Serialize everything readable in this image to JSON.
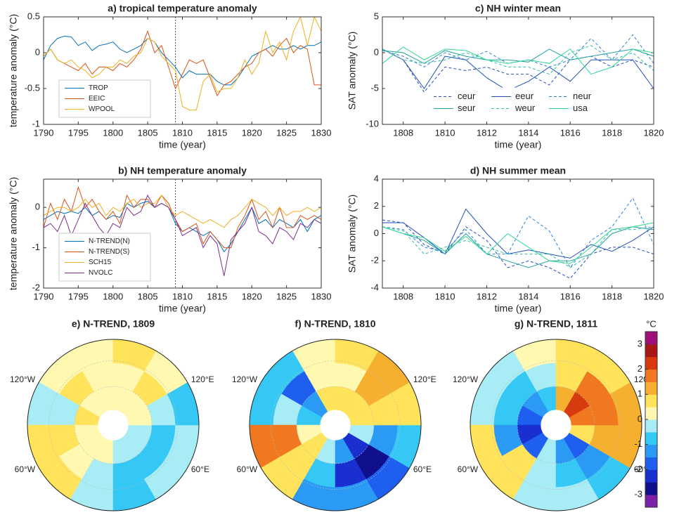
{
  "chart_data": [
    {
      "type": "line",
      "title": "a) tropical temperature anomaly",
      "xlabel": "time (year)",
      "ylabel": "temperature anomaly (°C)",
      "x": [
        1790,
        1791,
        1792,
        1793,
        1794,
        1795,
        1796,
        1797,
        1798,
        1799,
        1800,
        1801,
        1802,
        1803,
        1804,
        1805,
        1806,
        1807,
        1808,
        1809,
        1810,
        1811,
        1812,
        1813,
        1814,
        1815,
        1816,
        1817,
        1818,
        1819,
        1820,
        1821,
        1822,
        1823,
        1824,
        1825,
        1826,
        1827,
        1828,
        1829,
        1830
      ],
      "xlim": [
        1790,
        1830
      ],
      "xticks": [
        1790,
        1795,
        1800,
        1805,
        1810,
        1815,
        1820,
        1825,
        1830
      ],
      "ylim": [
        -1,
        0.5
      ],
      "yticks": [
        -1,
        -0.5,
        0,
        0.5
      ],
      "vline": 1809,
      "legend": "lower left",
      "series": [
        {
          "name": "TROP",
          "color": "#0072bd",
          "values": [
            -0.1,
            0.1,
            0.2,
            0.23,
            0.22,
            0.1,
            0.15,
            0.03,
            0.1,
            0.12,
            0.15,
            0.05,
            0,
            0.05,
            0.1,
            0.2,
            0.15,
            0,
            -0.1,
            -0.2,
            -0.35,
            -0.25,
            -0.3,
            -0.3,
            -0.3,
            -0.4,
            -0.45,
            -0.45,
            -0.35,
            -0.2,
            -0.05,
            0,
            0.05,
            0.1,
            0.05,
            0.05,
            0.1,
            0.05,
            0.1,
            0.1,
            0.15
          ]
        },
        {
          "name": "EEIC",
          "color": "#d95319",
          "values": [
            -0.05,
            0.05,
            -0.1,
            -0.15,
            -0.2,
            -0.25,
            -0.15,
            -0.3,
            -0.2,
            -0.2,
            -0.25,
            -0.15,
            -0.2,
            -0.1,
            0.05,
            0.3,
            0,
            0.1,
            -0.2,
            -0.5,
            -0.3,
            -0.1,
            -0.15,
            -0.1,
            -0.35,
            -0.6,
            -0.45,
            -0.4,
            -0.3,
            -0.2,
            -0.15,
            0,
            0.05,
            -0.05,
            0.1,
            0.2,
            0,
            0.1,
            0.05,
            -0.45,
            -0.45
          ]
        },
        {
          "name": "WPOOL",
          "color": "#edb120",
          "values": [
            -0.05,
            0.05,
            -0.1,
            -0.15,
            -0.1,
            -0.2,
            -0.25,
            -0.35,
            -0.3,
            -0.2,
            -0.2,
            -0.1,
            -0.15,
            -0.05,
            0,
            0.2,
            0.15,
            -0.05,
            -0.15,
            -0.25,
            -0.75,
            -0.8,
            -0.8,
            -0.4,
            -0.3,
            -0.55,
            -0.5,
            -0.5,
            -0.35,
            -0.1,
            -0.3,
            -0.15,
            0.3,
            0,
            0.15,
            -0.1,
            0.3,
            0.5,
            0.1,
            0.5,
            0.3
          ]
        }
      ]
    },
    {
      "type": "line",
      "title": "b) NH temperature anomaly",
      "xlabel": "time (year)",
      "ylabel": "temperature anomaly (°C)",
      "x": [
        1790,
        1791,
        1792,
        1793,
        1794,
        1795,
        1796,
        1797,
        1798,
        1799,
        1800,
        1801,
        1802,
        1803,
        1804,
        1805,
        1806,
        1807,
        1808,
        1809,
        1810,
        1811,
        1812,
        1813,
        1814,
        1815,
        1816,
        1817,
        1818,
        1819,
        1820,
        1821,
        1822,
        1823,
        1824,
        1825,
        1826,
        1827,
        1828,
        1829,
        1830
      ],
      "xlim": [
        1790,
        1830
      ],
      "xticks": [
        1790,
        1795,
        1800,
        1805,
        1810,
        1815,
        1820,
        1825,
        1830
      ],
      "ylim": [
        -2,
        0.7
      ],
      "yticks": [
        -2,
        -1,
        0
      ],
      "vline": 1809,
      "legend": "lower left",
      "series": [
        {
          "name": "N-TREND(N)",
          "color": "#0072bd",
          "values": [
            -0.3,
            -0.2,
            -0.1,
            -0.15,
            -0.1,
            -0.15,
            0,
            -0.2,
            -0.1,
            -0.3,
            -0.2,
            -0.25,
            0.1,
            0,
            0.1,
            0.15,
            0,
            0.1,
            0,
            -0.4,
            -0.6,
            -0.5,
            -0.6,
            -0.7,
            -0.6,
            -0.8,
            -1.1,
            -0.9,
            -0.6,
            -0.3,
            0,
            -0.4,
            -0.3,
            -0.5,
            -0.3,
            -0.4,
            -0.5,
            -0.3,
            -0.6,
            -0.3,
            -0.2
          ]
        },
        {
          "name": "N-TREND(S)",
          "color": "#d95319",
          "values": [
            -0.5,
            0.1,
            -0.3,
            0.2,
            -0.1,
            0.5,
            0,
            0.2,
            -0.1,
            -0.3,
            -0.1,
            -0.4,
            0.3,
            0,
            0.2,
            0.2,
            0,
            0.3,
            0.1,
            -0.3,
            -0.6,
            -0.5,
            -0.4,
            -0.9,
            -0.6,
            -0.8,
            -1,
            -1,
            -0.5,
            -0.2,
            0.2,
            -0.3,
            -0.1,
            -0.5,
            0,
            -0.5,
            -0.5,
            -0.2,
            -0.3,
            -0.2,
            -0.3
          ]
        },
        {
          "name": "SCH15",
          "color": "#edb120",
          "values": [
            -0.2,
            -0.1,
            0,
            0,
            -0.1,
            0,
            0.2,
            0,
            0.1,
            -0.2,
            0,
            -0.1,
            0.1,
            0.2,
            0,
            0.1,
            0.1,
            0.3,
            0,
            -0.2,
            -0.1,
            -0.2,
            -0.3,
            -0.4,
            -0.3,
            -0.4,
            -0.5,
            -0.3,
            -0.2,
            0,
            0.2,
            0.1,
            0,
            -0.2,
            0,
            -0.2,
            -0.1,
            -0.1,
            0,
            -0.1,
            0
          ]
        },
        {
          "name": "NVOLC",
          "color": "#7e2f8e",
          "values": [
            -0.5,
            -0.4,
            -0.6,
            -0.2,
            -0.7,
            -0.3,
            0.1,
            -0.2,
            -0.5,
            -0.7,
            -0.4,
            -0.5,
            0,
            -0.2,
            -0.1,
            0.3,
            0,
            0.1,
            0,
            -0.3,
            -0.7,
            -0.6,
            -0.5,
            -1,
            -0.7,
            -0.9,
            -1.7,
            -0.8,
            -0.6,
            -0.4,
            0,
            -0.6,
            -0.7,
            -0.9,
            -0.5,
            -0.6,
            -0.8,
            -0.4,
            -0.5,
            -0.3,
            -0.4
          ]
        }
      ]
    },
    {
      "type": "line",
      "title": "c) NH winter mean",
      "xlabel": "time (year)",
      "ylabel": "SAT anomaly (°C)",
      "x": [
        1807,
        1808,
        1809,
        1810,
        1811,
        1812,
        1813,
        1814,
        1815,
        1816,
        1817,
        1818,
        1819,
        1820
      ],
      "xlim": [
        1807,
        1820
      ],
      "xticks": [
        1808,
        1810,
        1812,
        1814,
        1816,
        1818,
        1820
      ],
      "ylim": [
        -10,
        5
      ],
      "yticks": [
        -10,
        -5,
        0,
        5
      ],
      "legend": "lower center",
      "series": [
        {
          "name": "ceur",
          "color": "#2050b8",
          "dashed": true,
          "values": [
            0.5,
            -1,
            -5.5,
            -2,
            -2.5,
            -2,
            -3,
            -3,
            -4.5,
            -1,
            -0.5,
            -2,
            -1,
            -2
          ]
        },
        {
          "name": "eeur",
          "color": "#2050b8",
          "values": [
            0.5,
            -1,
            -5,
            -0.5,
            -1,
            -3.5,
            -5.3,
            -4,
            -2,
            -4,
            -1,
            -1,
            -1,
            -5
          ]
        },
        {
          "name": "neur",
          "color": "#2c80d8",
          "dashed": true,
          "values": [
            0.3,
            -0.5,
            -2,
            0,
            -1,
            0.2,
            -1.5,
            -1,
            -2,
            -1,
            2,
            -1,
            2.5,
            -1.5
          ]
        },
        {
          "name": "seur",
          "color": "#28a0a0",
          "values": [
            0.3,
            0,
            -1.5,
            0.3,
            -0.5,
            -1,
            -1,
            -1.3,
            0.5,
            -1,
            -0.5,
            0,
            0.5,
            -0.5
          ]
        },
        {
          "name": "weur",
          "color": "#30c0a8",
          "dashed": true,
          "values": [
            0.5,
            -1,
            -1.5,
            -1,
            0,
            -1,
            -2,
            -2,
            -3,
            0,
            1,
            -1,
            0,
            -2.5
          ]
        },
        {
          "name": "usa",
          "color": "#30d890",
          "values": [
            -1.5,
            0.8,
            -1,
            0.5,
            0.3,
            -1,
            -1.5,
            -1,
            -1.5,
            0.5,
            -3,
            -2,
            0.5,
            0
          ]
        }
      ]
    },
    {
      "type": "line",
      "title": "d) NH summer mean",
      "xlabel": "time (year)",
      "ylabel": "SAT anomaly (°C)",
      "x": [
        1807,
        1808,
        1809,
        1810,
        1811,
        1812,
        1813,
        1814,
        1815,
        1816,
        1817,
        1818,
        1819,
        1820
      ],
      "xlim": [
        1807,
        1820
      ],
      "xticks": [
        1808,
        1810,
        1812,
        1814,
        1816,
        1818,
        1820
      ],
      "ylim": [
        -4,
        4
      ],
      "yticks": [
        -4,
        -2,
        0,
        2,
        4
      ],
      "series": [
        {
          "name": "ceur",
          "color": "#2050b8",
          "dashed": true,
          "values": [
            1,
            0.8,
            -0.8,
            -1.5,
            0.5,
            -0.5,
            -2.5,
            -2,
            -2.5,
            -3.3,
            -1.5,
            -1,
            -1,
            -1.5
          ]
        },
        {
          "name": "eeur",
          "color": "#2050b8",
          "values": [
            0.8,
            0.8,
            -0.3,
            -1.5,
            1.8,
            0,
            -1.5,
            -1.2,
            -1.5,
            -1.8,
            -0.8,
            -1.3,
            -0.5,
            0.5
          ]
        },
        {
          "name": "neur",
          "color": "#2c80d8",
          "dashed": true,
          "values": [
            0.5,
            0.3,
            -1,
            -1.3,
            0.3,
            -1.5,
            -1.5,
            1.3,
            0.2,
            -2.5,
            -0.5,
            0.5,
            2.6,
            -0.8
          ]
        },
        {
          "name": "seur",
          "color": "#28a0a0",
          "values": [
            0.5,
            0,
            -0.5,
            -1.5,
            0,
            -1.5,
            -2,
            -2.5,
            -2,
            -2,
            -1.5,
            0,
            0.5,
            0.3
          ]
        },
        {
          "name": "weur",
          "color": "#30c0a8",
          "dashed": true,
          "values": [
            0.5,
            0.2,
            -1.5,
            -1,
            -0.5,
            -1,
            -1.5,
            -1.5,
            -1.5,
            -2.5,
            -1.5,
            0.3,
            0.3,
            0.5
          ]
        },
        {
          "name": "usa",
          "color": "#30d890",
          "values": [
            0.5,
            0,
            -0.3,
            -1.3,
            -0.2,
            -1.5,
            0,
            -1,
            -2,
            -2.2,
            -1,
            0.3,
            0.5,
            0.8
          ]
        }
      ]
    },
    {
      "type": "polar-map",
      "title": "e) N-TREND, 1809",
      "lon_labels": [
        "120°W",
        "120°E",
        "60°W",
        "60°E"
      ],
      "values": [
        [
          0,
          0,
          0.5,
          0.3,
          0,
          0,
          -0.5,
          -0.5,
          -0.3,
          0,
          0,
          0
        ],
        [
          0.3,
          0.5,
          -0.5,
          0.5,
          0.3,
          -0.5,
          -0.8,
          -0.8,
          -0.7,
          -0.3,
          0.5,
          0.3
        ],
        [
          0.3,
          0.2,
          -0.3,
          0.8,
          0.8,
          -0.3,
          -0.7,
          -0.5,
          -0.5,
          -0.8,
          0.3,
          0.6
        ]
      ]
    },
    {
      "type": "polar-map",
      "title": "f) N-TREND, 1810",
      "lon_labels": [
        "120°W",
        "120°E",
        "60°W",
        "60°E"
      ],
      "values": [
        [
          0.5,
          -1.5,
          -0.8,
          0.3,
          0.5,
          -0.5,
          -1.5,
          -2.2,
          -0.5,
          0.5,
          0.8,
          0.5
        ],
        [
          0.3,
          -2,
          -0.5,
          1.5,
          0.5,
          -1,
          -2.5,
          -3,
          -1.2,
          0.8,
          1,
          0.3
        ],
        [
          0,
          -1,
          -0.8,
          1.5,
          0.8,
          -1.2,
          -1.5,
          -2,
          -0.8,
          0.8,
          1.2,
          0.5
        ]
      ]
    },
    {
      "type": "polar-map",
      "title": "g) N-TREND, 1811",
      "lon_labels": [
        "120°W",
        "120°E",
        "60°W",
        "60°E"
      ],
      "values": [
        [
          -1,
          -1.5,
          -2,
          -2.5,
          -1.8,
          -0.5,
          -1.5,
          -2,
          0.5,
          1.5,
          2,
          1
        ],
        [
          -0.5,
          -1,
          -0.8,
          -1.5,
          0.5,
          -0.3,
          -1,
          -1.5,
          1.2,
          1.5,
          1.5,
          0.5
        ],
        [
          0,
          -0.5,
          -0.5,
          0.5,
          0.8,
          -0.5,
          -0.3,
          -0.8,
          1,
          1,
          0.8,
          0.5
        ]
      ]
    },
    {
      "type": "colorbar",
      "title": "°C",
      "ylim": [
        -3.5,
        3.5
      ],
      "yticks": [
        -3,
        -2,
        -1,
        0,
        1,
        2,
        3
      ],
      "colors": [
        "#7b22a8",
        "#10108c",
        "#1a2fd0",
        "#1f5ff0",
        "#2a9af5",
        "#35c8f5",
        "#a8ecf5",
        "#fff8b0",
        "#ffe35a",
        "#f5b030",
        "#f07820",
        "#d83a10",
        "#a81818",
        "#a0107a"
      ]
    }
  ]
}
